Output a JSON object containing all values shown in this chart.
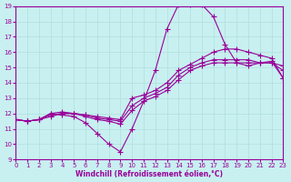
{
  "xlabel": "Windchill (Refroidissement éolien,°C)",
  "xlim": [
    0,
    23
  ],
  "ylim": [
    9,
    19
  ],
  "xticks": [
    0,
    1,
    2,
    3,
    4,
    5,
    6,
    7,
    8,
    9,
    10,
    11,
    12,
    13,
    14,
    15,
    16,
    17,
    18,
    19,
    20,
    21,
    22,
    23
  ],
  "yticks": [
    9,
    10,
    11,
    12,
    13,
    14,
    15,
    16,
    17,
    18,
    19
  ],
  "bg_color": "#c8f0f0",
  "line_color": "#990099",
  "grid_color": "#b0dede",
  "lines": [
    {
      "x": [
        0,
        1,
        2,
        3,
        4,
        5,
        6,
        7,
        8,
        9,
        10,
        11,
        12,
        13,
        14,
        15,
        16,
        17,
        18,
        19,
        20,
        21,
        22,
        23
      ],
      "y": [
        11.6,
        11.5,
        11.6,
        12.0,
        11.9,
        11.8,
        11.4,
        10.7,
        10.0,
        9.5,
        11.0,
        12.8,
        14.8,
        17.5,
        19.1,
        19.1,
        19.1,
        18.3,
        16.5,
        15.3,
        15.1,
        15.3,
        15.4,
        14.3
      ]
    },
    {
      "x": [
        0,
        1,
        2,
        3,
        4,
        5,
        6,
        7,
        8,
        9,
        10,
        11,
        12,
        13,
        14,
        15,
        16,
        17,
        18,
        19,
        20,
        21,
        22,
        23
      ],
      "y": [
        11.6,
        11.5,
        11.6,
        11.9,
        12.0,
        12.0,
        11.8,
        11.6,
        11.5,
        11.3,
        12.2,
        12.8,
        13.1,
        13.5,
        14.2,
        14.8,
        15.1,
        15.3,
        15.3,
        15.3,
        15.3,
        15.3,
        15.3,
        15.1
      ]
    },
    {
      "x": [
        0,
        1,
        2,
        3,
        4,
        5,
        6,
        7,
        8,
        9,
        10,
        11,
        12,
        13,
        14,
        15,
        16,
        17,
        18,
        19,
        20,
        21,
        22,
        23
      ],
      "y": [
        11.6,
        11.5,
        11.6,
        11.8,
        12.0,
        12.0,
        11.9,
        11.7,
        11.6,
        11.5,
        12.5,
        13.0,
        13.3,
        13.7,
        14.5,
        15.0,
        15.3,
        15.5,
        15.5,
        15.5,
        15.5,
        15.3,
        15.3,
        14.8
      ]
    },
    {
      "x": [
        0,
        1,
        2,
        3,
        4,
        5,
        6,
        7,
        8,
        9,
        10,
        11,
        12,
        13,
        14,
        15,
        16,
        17,
        18,
        19,
        20,
        21,
        22,
        23
      ],
      "y": [
        11.6,
        11.5,
        11.6,
        12.0,
        12.1,
        12.0,
        11.9,
        11.8,
        11.7,
        11.6,
        13.0,
        13.2,
        13.5,
        14.0,
        14.8,
        15.2,
        15.6,
        16.0,
        16.2,
        16.2,
        16.0,
        15.8,
        15.6,
        14.3
      ]
    }
  ]
}
